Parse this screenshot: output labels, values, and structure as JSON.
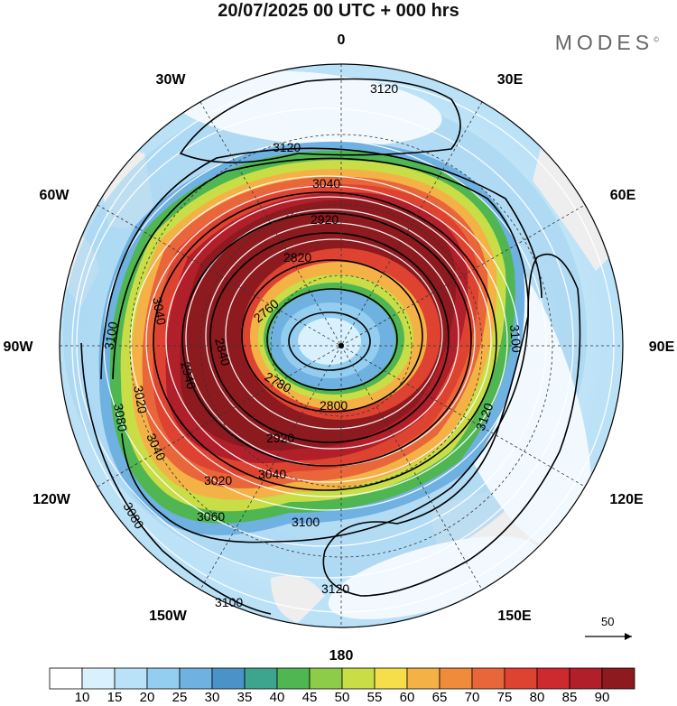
{
  "title": "20/07/2025  00 UTC  + 000 hrs",
  "brand": "MODES",
  "brand_mark": "©",
  "longitude_labels": [
    {
      "text": "0",
      "lon": 0
    },
    {
      "text": "30E",
      "lon": 30
    },
    {
      "text": "60E",
      "lon": 60
    },
    {
      "text": "90E",
      "lon": 90
    },
    {
      "text": "120E",
      "lon": 120
    },
    {
      "text": "150E",
      "lon": 150
    },
    {
      "text": "180",
      "lon": 180
    },
    {
      "text": "150W",
      "lon": 210
    },
    {
      "text": "120W",
      "lon": 240
    },
    {
      "text": "90W",
      "lon": 270
    },
    {
      "text": "60W",
      "lon": 300
    },
    {
      "text": "30W",
      "lon": 330
    }
  ],
  "contour_labels": [
    "3120",
    "3120",
    "3120",
    "3120",
    "3100",
    "3100",
    "3100",
    "3100",
    "3080",
    "3080",
    "3060",
    "3040",
    "3040",
    "3040",
    "3020",
    "3020",
    "3040",
    "2920",
    "2820",
    "2760",
    "2780",
    "2800",
    "2840",
    "2940",
    "2920"
  ],
  "reference_vector": "50",
  "colorbar": {
    "colors": [
      "#ffffff",
      "#d9f0fd",
      "#b9e2f8",
      "#93cdef",
      "#6fb1e0",
      "#4b92c9",
      "#3da58e",
      "#4fb652",
      "#8ccc48",
      "#c9dd46",
      "#f5de4a",
      "#f4b246",
      "#ef8b3a",
      "#e8663a",
      "#de4331",
      "#cd2a2f",
      "#b01f2a",
      "#8c1a1f"
    ],
    "labels": [
      "10",
      "15",
      "20",
      "25",
      "30",
      "35",
      "40",
      "45",
      "50",
      "55",
      "60",
      "65",
      "70",
      "75",
      "80",
      "85",
      "90"
    ]
  }
}
